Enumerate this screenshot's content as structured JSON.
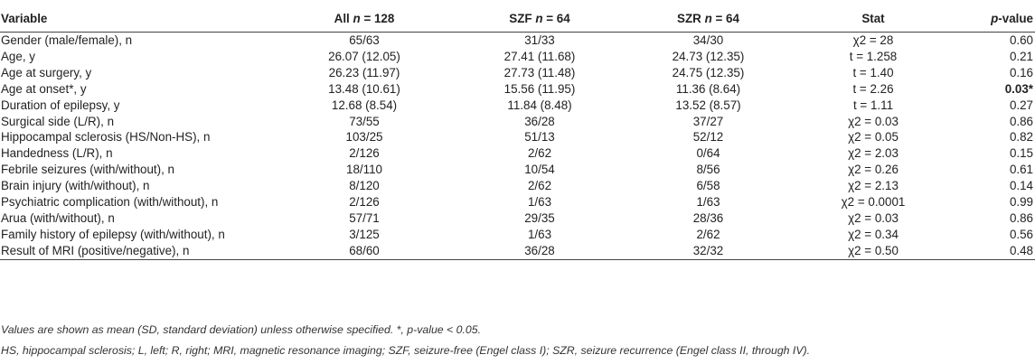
{
  "header": {
    "variable": "Variable",
    "all": {
      "label": "All",
      "n": "n",
      "eq": "= 128"
    },
    "szf": {
      "label": "SZF",
      "n": "n",
      "eq": "= 64"
    },
    "szr": {
      "label": "SZR",
      "n": "n",
      "eq": "= 64"
    },
    "stat": "Stat",
    "p": {
      "italic": "p",
      "rest": "-value"
    }
  },
  "rows": [
    {
      "variable": "Gender (male/female), n",
      "all": "65/63",
      "szf": "31/33",
      "szr": "34/30",
      "stat": "χ2 = 28",
      "p": "0.60"
    },
    {
      "variable": "Age, y",
      "all": "26.07 (12.05)",
      "szf": "27.41 (11.68)",
      "szr": "24.73 (12.35)",
      "stat": "t = 1.258",
      "p": "0.21"
    },
    {
      "variable": "Age at surgery, y",
      "all": "26.23 (11.97)",
      "szf": "27.73 (11.48)",
      "szr": "24.75 (12.35)",
      "stat": "t = 1.40",
      "p": "0.16"
    },
    {
      "variable": "Age at onset*, y",
      "all": "13.48 (10.61)",
      "szf": "15.56 (11.95)",
      "szr": "11.36 (8.64)",
      "stat": "t = 2.26",
      "p": "0.03*"
    },
    {
      "variable": "Duration of epilepsy, y",
      "all": "12.68 (8.54)",
      "szf": "11.84 (8.48)",
      "szr": "13.52 (8.57)",
      "stat": "t = 1.11",
      "p": "0.27"
    },
    {
      "variable": "Surgical side (L/R), n",
      "all": "73/55",
      "szf": "36/28",
      "szr": "37/27",
      "stat": "χ2 = 0.03",
      "p": "0.86"
    },
    {
      "variable": "Hippocampal sclerosis (HS/Non-HS), n",
      "all": "103/25",
      "szf": "51/13",
      "szr": "52/12",
      "stat": "χ2 = 0.05",
      "p": "0.82"
    },
    {
      "variable": "Handedness (L/R), n",
      "all": "2/126",
      "szf": "2/62",
      "szr": "0/64",
      "stat": "χ2 = 2.03",
      "p": "0.15"
    },
    {
      "variable": "Febrile seizures (with/without), n",
      "all": "18/110",
      "szf": "10/54",
      "szr": "8/56",
      "stat": "χ2 = 0.26",
      "p": "0.61"
    },
    {
      "variable": "Brain injury (with/without), n",
      "all": "8/120",
      "szf": "2/62",
      "szr": "6/58",
      "stat": "χ2 = 2.13",
      "p": "0.14"
    },
    {
      "variable": "Psychiatric complication (with/without), n",
      "all": "2/126",
      "szf": "1/63",
      "szr": "1/63",
      "stat": "χ2 = 0.0001",
      "p": "0.99"
    },
    {
      "variable": "Arua (with/without), n",
      "all": "57/71",
      "szf": "29/35",
      "szr": "28/36",
      "stat": "χ2 = 0.03",
      "p": "0.86"
    },
    {
      "variable": "Family history of epilepsy (with/without), n",
      "all": "3/125",
      "szf": "1/63",
      "szr": "2/62",
      "stat": "χ2 = 0.34",
      "p": "0.56"
    },
    {
      "variable": "Result of MRI (positive/negative), n",
      "all": "68/60",
      "szf": "36/28",
      "szr": "32/32",
      "stat": "χ2 = 0.50",
      "p": "0.48"
    }
  ],
  "footnotes": {
    "line1": "Values are shown as mean (SD, standard deviation) unless otherwise specified. *, p-value < 0.05.",
    "line2": "HS, hippocampal sclerosis; L, left; R, right; MRI, magnetic resonance imaging; SZF, seizure-free (Engel class I); SZR, seizure recurrence (Engel class II, through IV)."
  }
}
